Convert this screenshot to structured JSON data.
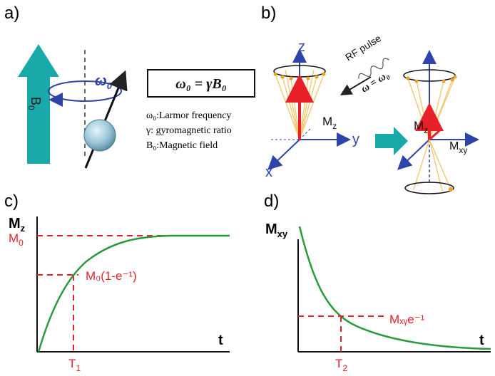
{
  "panels": {
    "a": {
      "label": "a)",
      "b0_label": "B",
      "b0_sub": "0",
      "omega_label": "ω",
      "omega_sub": "0",
      "equation": "ω₀ = γB₀",
      "legend": [
        "ω₀:Larmor frequency",
        "γ: gyromagnetic ratio",
        "B₀:Magnetic field"
      ]
    },
    "b": {
      "label": "b)",
      "z": "z",
      "y": "y",
      "x": "x",
      "mz": "M",
      "mz_sub": "z",
      "mxy": "M",
      "mxy_sub": "xy",
      "rf_pulse": "RF pulse",
      "rf_condition": "ω = ω₀"
    },
    "c": {
      "label": "c)",
      "ylabel": "M",
      "ylabel_sub": "z",
      "xlabel": "t",
      "level_label": "M",
      "level_sub": "0",
      "annotation": "M₀(1-e⁻¹)",
      "tick": "T",
      "tick_sub": "1"
    },
    "d": {
      "label": "d)",
      "ylabel": "M",
      "ylabel_sub": "xy",
      "xlabel": "t",
      "annotation": "Mₓᵧe⁻¹",
      "tick": "T",
      "tick_sub": "2"
    }
  },
  "colors": {
    "teal": "#1aa9a9",
    "red": "#e8202a",
    "curve": "#2a9a3a",
    "blue": "#2f44a8",
    "cone": "#f2c66a"
  }
}
